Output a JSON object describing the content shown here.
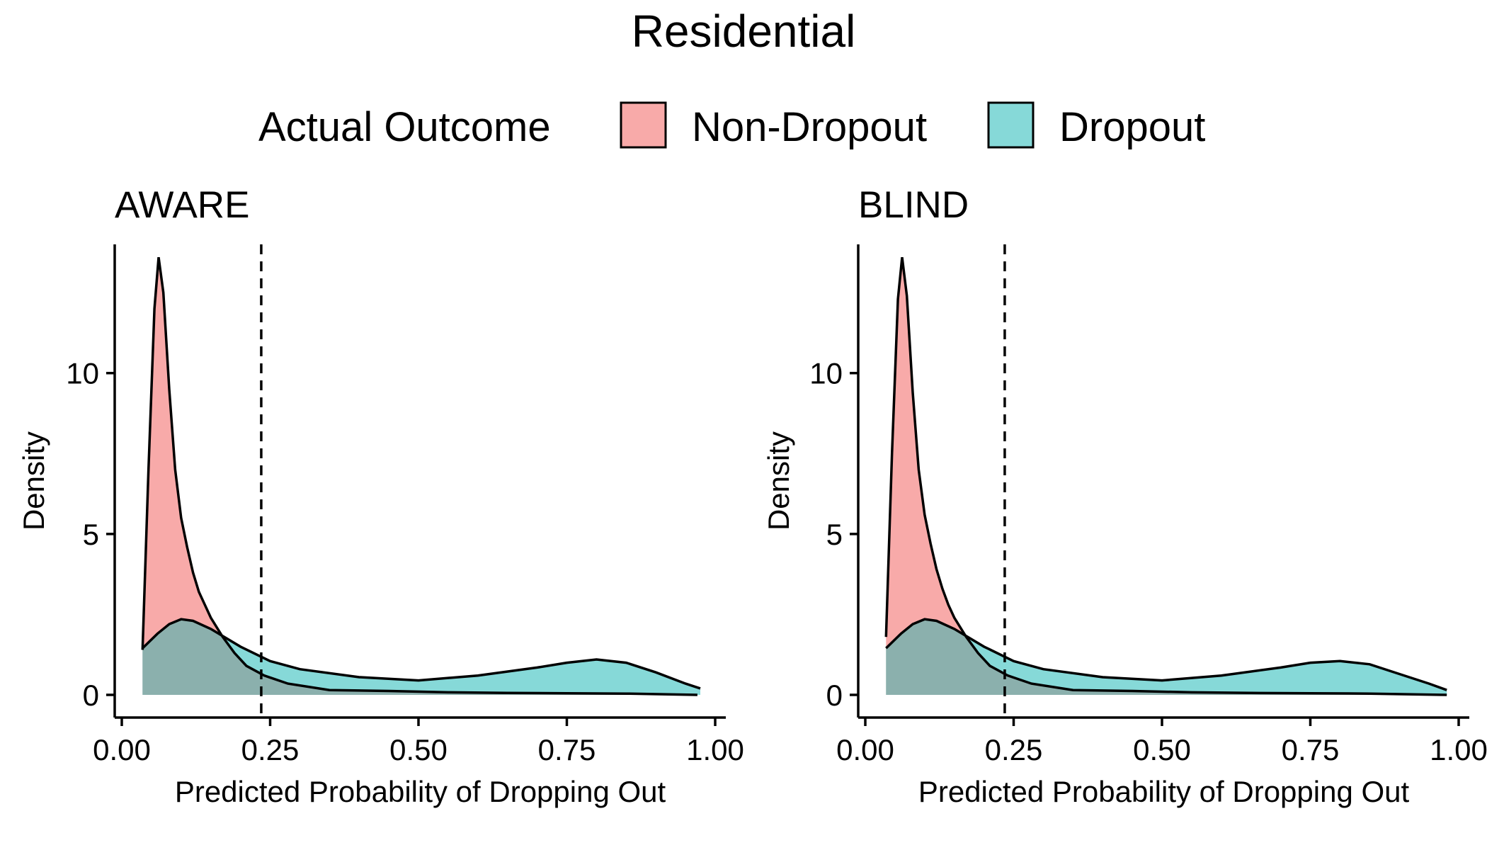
{
  "chart_data": {
    "type": "area",
    "title": "Residential",
    "legend": {
      "title": "Actual Outcome",
      "position": "top",
      "entries": [
        {
          "name": "Non-Dropout",
          "color": "#F8AAA9"
        },
        {
          "name": "Dropout",
          "color": "#86D9D8"
        }
      ]
    },
    "overlap_color": "#8BB0AD",
    "threshold": 0.235,
    "xlim": [
      0,
      1
    ],
    "ylim": [
      0,
      14
    ],
    "xticks": [
      0,
      0.25,
      0.5,
      0.75,
      1.0
    ],
    "xtick_labels": [
      "0.00",
      "0.25",
      "0.50",
      "0.75",
      "1.00"
    ],
    "yticks": [
      0,
      5,
      10
    ],
    "ytick_labels": [
      "0",
      "5",
      "10"
    ],
    "xlabel": "Predicted Probability of Dropping Out",
    "ylabel": "Density",
    "grid": false,
    "panels": [
      {
        "title": "AWARE",
        "series": [
          {
            "name": "Non-Dropout",
            "x": [
              0.035,
              0.045,
              0.055,
              0.062,
              0.07,
              0.08,
              0.09,
              0.1,
              0.11,
              0.12,
              0.13,
              0.14,
              0.15,
              0.17,
              0.19,
              0.21,
              0.24,
              0.28,
              0.35,
              0.45,
              0.55,
              0.65,
              0.75,
              0.85,
              0.97
            ],
            "values": [
              1.4,
              7.0,
              12.0,
              13.6,
              12.5,
              9.5,
              7.0,
              5.5,
              4.6,
              3.8,
              3.2,
              2.8,
              2.4,
              1.8,
              1.3,
              0.9,
              0.6,
              0.35,
              0.15,
              0.12,
              0.08,
              0.06,
              0.05,
              0.04,
              0.0
            ]
          },
          {
            "name": "Dropout",
            "x": [
              0.035,
              0.06,
              0.08,
              0.1,
              0.12,
              0.15,
              0.2,
              0.25,
              0.3,
              0.4,
              0.5,
              0.6,
              0.7,
              0.75,
              0.8,
              0.85,
              0.9,
              0.95,
              0.975
            ],
            "values": [
              1.45,
              1.9,
              2.2,
              2.35,
              2.3,
              2.05,
              1.5,
              1.05,
              0.8,
              0.55,
              0.45,
              0.6,
              0.85,
              1.0,
              1.1,
              1.0,
              0.7,
              0.35,
              0.2
            ]
          }
        ]
      },
      {
        "title": "BLIND",
        "series": [
          {
            "name": "Non-Dropout",
            "x": [
              0.035,
              0.045,
              0.055,
              0.062,
              0.07,
              0.08,
              0.09,
              0.1,
              0.11,
              0.12,
              0.13,
              0.14,
              0.15,
              0.17,
              0.19,
              0.21,
              0.24,
              0.28,
              0.35,
              0.45,
              0.55,
              0.65,
              0.75,
              0.85,
              0.98
            ],
            "values": [
              1.8,
              7.5,
              12.3,
              13.6,
              12.4,
              9.4,
              7.0,
              5.6,
              4.7,
              3.9,
              3.3,
              2.8,
              2.4,
              1.8,
              1.3,
              0.9,
              0.6,
              0.35,
              0.15,
              0.12,
              0.08,
              0.06,
              0.05,
              0.04,
              0.0
            ]
          },
          {
            "name": "Dropout",
            "x": [
              0.035,
              0.06,
              0.08,
              0.1,
              0.12,
              0.15,
              0.2,
              0.25,
              0.3,
              0.4,
              0.5,
              0.6,
              0.7,
              0.75,
              0.8,
              0.85,
              0.9,
              0.95,
              0.98
            ],
            "values": [
              1.45,
              1.9,
              2.2,
              2.35,
              2.3,
              2.05,
              1.5,
              1.05,
              0.8,
              0.55,
              0.45,
              0.6,
              0.85,
              1.0,
              1.05,
              0.95,
              0.65,
              0.35,
              0.15
            ]
          }
        ]
      }
    ]
  }
}
